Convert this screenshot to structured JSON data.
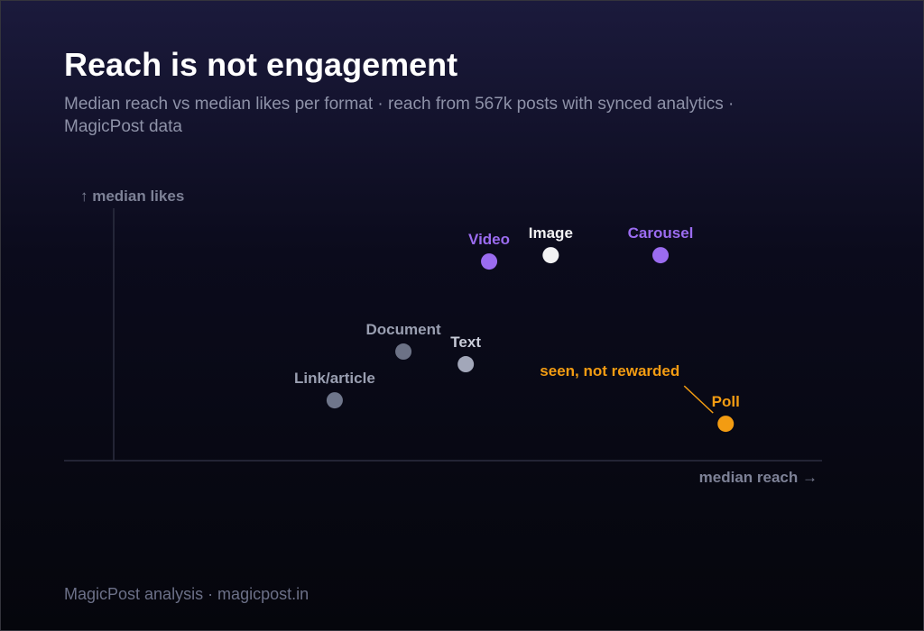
{
  "chart_data": {
    "type": "scatter",
    "title": "Reach is not engagement",
    "subtitle": "Median reach vs median likes per format · reach from 567k posts with synced analytics · MagicPost data",
    "x_label": "median reach →",
    "y_label": "↑ median likes",
    "xlim": [
      0,
      100
    ],
    "ylim": [
      0,
      100
    ],
    "points": [
      {
        "label": "Link/article",
        "x": 31.2,
        "y": 23.9,
        "color": "#6f768b",
        "label_color": "#9a9fb1"
      },
      {
        "label": "Document",
        "x": 40.9,
        "y": 43.2,
        "color": "#6c7286",
        "label_color": "#9a9fb1"
      },
      {
        "label": "Text",
        "x": 49.7,
        "y": 38.2,
        "color": "#a2a7b9",
        "label_color": "#c9ccd8"
      },
      {
        "label": "Video",
        "x": 53.0,
        "y": 78.9,
        "color": "#9b6cf0",
        "label_color": "#9b6cf0"
      },
      {
        "label": "Image",
        "x": 61.7,
        "y": 81.4,
        "color": "#f2f2f4",
        "label_color": "#f2f2f4"
      },
      {
        "label": "Carousel",
        "x": 77.2,
        "y": 81.4,
        "color": "#9b6cf0",
        "label_color": "#9b6cf0"
      },
      {
        "label": "Poll",
        "x": 86.4,
        "y": 14.6,
        "color": "#f39c12",
        "label_color": "#f39c12"
      }
    ],
    "annotation": "seen, not rewarded",
    "annotation_color": "#f39c12",
    "footer": "MagicPost analysis · magicpost.in"
  }
}
